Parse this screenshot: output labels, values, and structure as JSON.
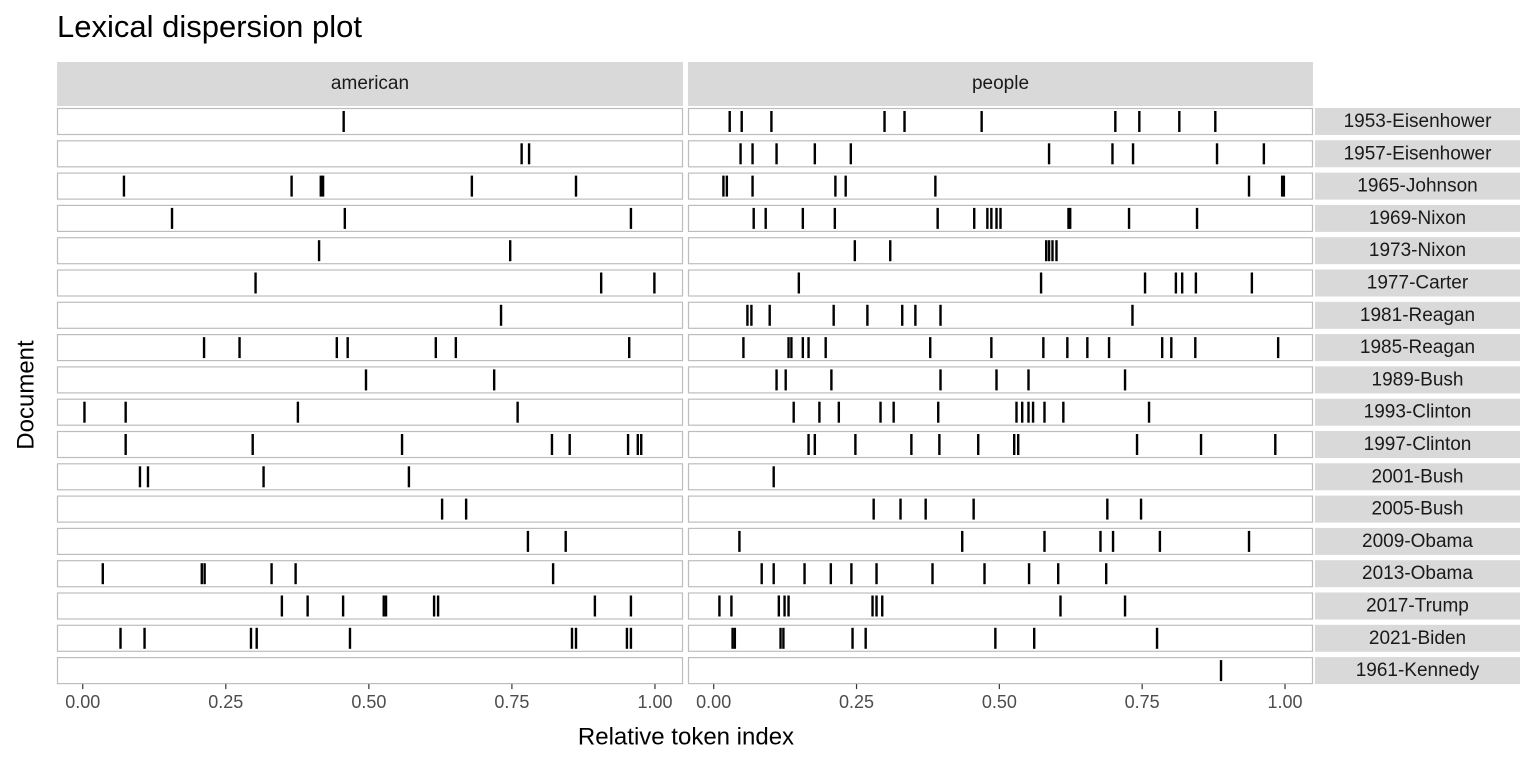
{
  "chart_data": {
    "type": "dispersion",
    "title": "Lexical dispersion plot",
    "x_label": "Relative token index",
    "y_label": "Document",
    "xlim": [
      -0.045,
      1.049
    ],
    "xticks": [
      {
        "value": 0,
        "label": "0.00"
      },
      {
        "value": 0.25,
        "label": "0.25"
      },
      {
        "value": 0.5,
        "label": "0.50"
      },
      {
        "value": 0.75,
        "label": "0.75"
      },
      {
        "value": 1,
        "label": "1.00"
      }
    ],
    "mark_color": "#000000",
    "documents": [
      "1953-Eisenhower",
      "1957-Eisenhower",
      "1965-Johnson",
      "1969-Nixon",
      "1973-Nixon",
      "1977-Carter",
      "1981-Reagan",
      "1985-Reagan",
      "1989-Bush",
      "1993-Clinton",
      "1997-Clinton",
      "2001-Bush",
      "2005-Bush",
      "2009-Obama",
      "2013-Obama",
      "2017-Trump",
      "2021-Biden",
      "1961-Kennedy"
    ],
    "panels": [
      {
        "name": "american",
        "positions": [
          [
            0.456
          ],
          [
            0.767,
            0.78
          ],
          [
            0.072,
            0.365,
            0.416,
            0.42,
            0.68,
            0.862
          ],
          [
            0.156,
            0.458,
            0.958
          ],
          [
            0.413,
            0.747
          ],
          [
            0.302,
            0.906,
            0.999
          ],
          [
            0.731
          ],
          [
            0.212,
            0.274,
            0.444,
            0.463,
            0.617,
            0.652,
            0.955
          ],
          [
            0.495,
            0.719
          ],
          [
            0.003,
            0.075,
            0.376,
            0.76
          ],
          [
            0.075,
            0.297,
            0.558,
            0.82,
            0.851,
            0.953,
            0.97,
            0.976
          ],
          [
            0.1,
            0.114,
            0.316,
            0.57
          ],
          [
            0.628,
            0.67
          ],
          [
            0.778,
            0.844
          ],
          [
            0.035,
            0.208,
            0.213,
            0.33,
            0.372,
            0.822
          ],
          [
            0.348,
            0.393,
            0.455,
            0.526,
            0.53,
            0.614,
            0.621,
            0.895,
            0.958
          ],
          [
            0.066,
            0.108,
            0.294,
            0.304,
            0.467,
            0.855,
            0.862,
            0.951,
            0.958
          ],
          []
        ]
      },
      {
        "name": "people",
        "positions": [
          [
            0.028,
            0.049,
            0.101,
            0.299,
            0.334,
            0.469,
            0.703,
            0.745,
            0.815,
            0.878
          ],
          [
            0.047,
            0.068,
            0.11,
            0.177,
            0.24,
            0.587,
            0.698,
            0.734,
            0.881,
            0.963
          ],
          [
            0.017,
            0.023,
            0.068,
            0.213,
            0.231,
            0.388,
            0.937,
            0.995,
            0.998
          ],
          [
            0.07,
            0.091,
            0.156,
            0.212,
            0.392,
            0.456,
            0.479,
            0.486,
            0.495,
            0.502,
            0.621,
            0.624,
            0.727,
            0.846
          ],
          [
            0.247,
            0.309,
            0.582,
            0.587,
            0.593,
            0.6
          ],
          [
            0.149,
            0.573,
            0.755,
            0.809,
            0.82,
            0.844,
            0.942
          ],
          [
            0.059,
            0.066,
            0.098,
            0.21,
            0.269,
            0.33,
            0.353,
            0.397,
            0.733
          ],
          [
            0.052,
            0.131,
            0.136,
            0.156,
            0.166,
            0.196,
            0.379,
            0.486,
            0.577,
            0.619,
            0.654,
            0.692,
            0.785,
            0.801,
            0.843,
            0.988
          ],
          [
            0.11,
            0.126,
            0.206,
            0.397,
            0.495,
            0.551,
            0.72
          ],
          [
            0.14,
            0.185,
            0.219,
            0.292,
            0.315,
            0.393,
            0.53,
            0.54,
            0.551,
            0.559,
            0.579,
            0.612,
            0.762
          ],
          [
            0.166,
            0.177,
            0.248,
            0.346,
            0.395,
            0.463,
            0.526,
            0.533,
            0.741,
            0.853,
            0.983
          ],
          [
            0.105
          ],
          [
            0.28,
            0.327,
            0.371,
            0.455,
            0.689,
            0.748
          ],
          [
            0.045,
            0.435,
            0.579,
            0.677,
            0.699,
            0.781,
            0.937
          ],
          [
            0.084,
            0.105,
            0.159,
            0.205,
            0.241,
            0.285,
            0.383,
            0.474,
            0.552,
            0.603,
            0.687
          ],
          [
            0.01,
            0.031,
            0.114,
            0.124,
            0.131,
            0.278,
            0.285,
            0.295,
            0.607,
            0.72
          ],
          [
            0.033,
            0.037,
            0.117,
            0.122,
            0.243,
            0.266,
            0.493,
            0.561,
            0.776
          ],
          [
            0.888
          ]
        ]
      }
    ]
  }
}
